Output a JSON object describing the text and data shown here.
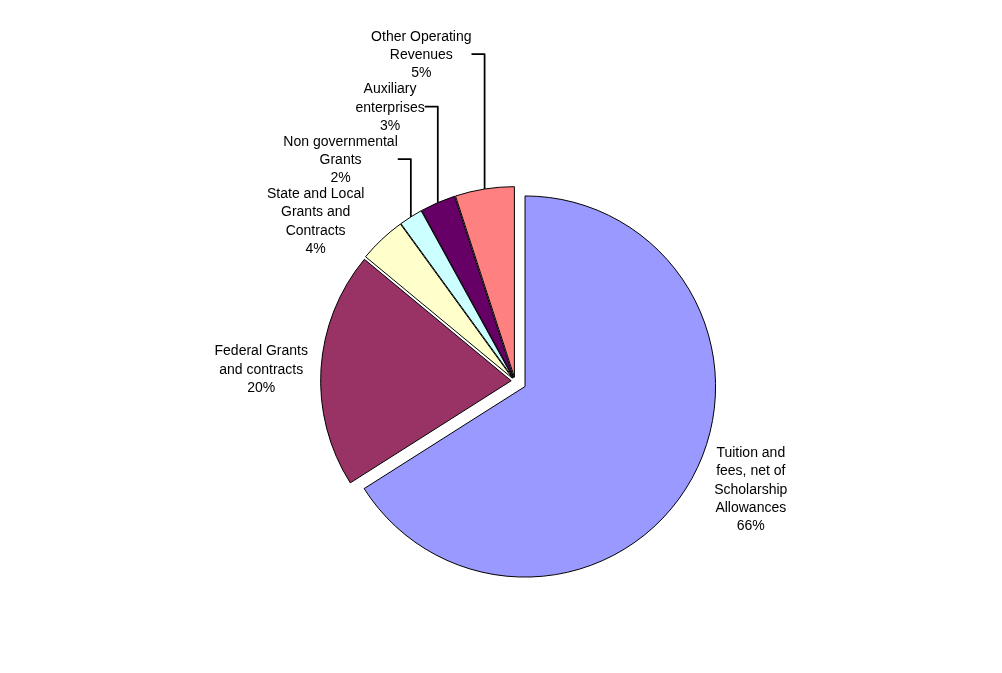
{
  "chart_data": {
    "type": "pie",
    "categories": [
      "Tuition and fees, net of Scholarship Allowances",
      "Federal Grants and contracts",
      "State and Local Grants and Contracts",
      "Non governmental Grants",
      "Auxiliary enterprises",
      "Other Operating Revenues"
    ],
    "values": [
      66,
      20,
      4,
      2,
      3,
      5
    ],
    "colors": [
      "#9999ff",
      "#993366",
      "#ffffcc",
      "#ccffff",
      "#660066",
      "#ff8080"
    ],
    "value_labels": [
      "66%",
      "20%",
      "4%",
      "2%",
      "3%",
      "5%"
    ],
    "legend": false
  }
}
